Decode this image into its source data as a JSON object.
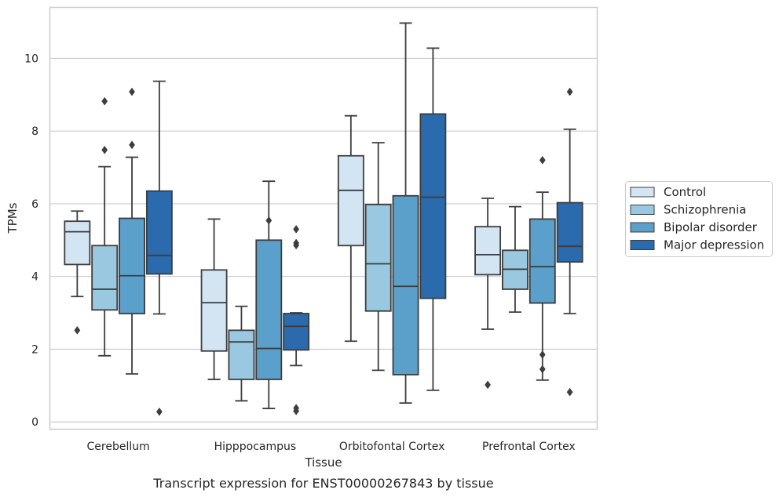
{
  "chart_data": {
    "type": "box",
    "xlabel": "Tissue",
    "ylabel": "TPMs",
    "caption": "Transcript expression for ENST00000267843 by tissue",
    "ylim": [
      -0.2,
      11.4
    ],
    "yticks": [
      0,
      2,
      4,
      6,
      8,
      10
    ],
    "grid": "horizontal",
    "legend_position": "right",
    "categories": [
      "Cerebellum",
      "Hipppocampus",
      "Orbitofontal Cortex",
      "Prefrontal Cortex"
    ],
    "series": [
      {
        "name": "Control",
        "color": "#d3e4f3",
        "boxes": [
          {
            "whisker_low": 3.45,
            "q1": 4.33,
            "median": 5.23,
            "q3": 5.52,
            "whisker_high": 5.8,
            "outliers": [
              2.52
            ]
          },
          {
            "whisker_low": 1.17,
            "q1": 1.95,
            "median": 3.28,
            "q3": 4.18,
            "whisker_high": 5.58,
            "outliers": []
          },
          {
            "whisker_low": 2.22,
            "q1": 4.85,
            "median": 6.37,
            "q3": 7.32,
            "whisker_high": 8.42,
            "outliers": []
          },
          {
            "whisker_low": 2.55,
            "q1": 4.05,
            "median": 4.6,
            "q3": 5.37,
            "whisker_high": 6.15,
            "outliers": [
              1.02
            ]
          }
        ]
      },
      {
        "name": "Schizophrenia",
        "color": "#9ac8e0",
        "boxes": [
          {
            "whisker_low": 1.82,
            "q1": 3.08,
            "median": 3.65,
            "q3": 4.85,
            "whisker_high": 7.02,
            "outliers": [
              7.48,
              8.82
            ]
          },
          {
            "whisker_low": 0.58,
            "q1": 1.17,
            "median": 2.2,
            "q3": 2.52,
            "whisker_high": 3.18,
            "outliers": []
          },
          {
            "whisker_low": 1.42,
            "q1": 3.05,
            "median": 4.35,
            "q3": 5.98,
            "whisker_high": 7.68,
            "outliers": []
          },
          {
            "whisker_low": 3.02,
            "q1": 3.65,
            "median": 4.2,
            "q3": 4.72,
            "whisker_high": 5.92,
            "outliers": []
          }
        ]
      },
      {
        "name": "Bipolar disorder",
        "color": "#5b9fcb",
        "boxes": [
          {
            "whisker_low": 1.32,
            "q1": 2.98,
            "median": 4.02,
            "q3": 5.6,
            "whisker_high": 7.28,
            "outliers": [
              7.62,
              9.08
            ]
          },
          {
            "whisker_low": 0.37,
            "q1": 1.17,
            "median": 2.02,
            "q3": 5.0,
            "whisker_high": 6.62,
            "outliers": [
              5.54
            ]
          },
          {
            "whisker_low": 0.52,
            "q1": 1.3,
            "median": 3.73,
            "q3": 6.22,
            "whisker_high": 10.97,
            "outliers": []
          },
          {
            "whisker_low": 1.15,
            "q1": 3.27,
            "median": 4.27,
            "q3": 5.58,
            "whisker_high": 6.32,
            "outliers": [
              1.45,
              1.85,
              7.2
            ]
          }
        ]
      },
      {
        "name": "Major depression",
        "color": "#2a6aad",
        "boxes": [
          {
            "whisker_low": 2.97,
            "q1": 4.07,
            "median": 4.58,
            "q3": 6.35,
            "whisker_high": 9.37,
            "outliers": [
              0.28
            ]
          },
          {
            "whisker_low": 1.55,
            "q1": 1.98,
            "median": 2.63,
            "q3": 2.98,
            "whisker_high": 3.0,
            "outliers": [
              0.3,
              0.38,
              4.86,
              4.92,
              5.3
            ]
          },
          {
            "whisker_low": 0.87,
            "q1": 3.4,
            "median": 6.18,
            "q3": 8.47,
            "whisker_high": 10.28,
            "outliers": []
          },
          {
            "whisker_low": 2.98,
            "q1": 4.4,
            "median": 4.83,
            "q3": 6.03,
            "whisker_high": 8.05,
            "outliers": [
              0.82,
              9.08
            ]
          }
        ]
      }
    ]
  }
}
